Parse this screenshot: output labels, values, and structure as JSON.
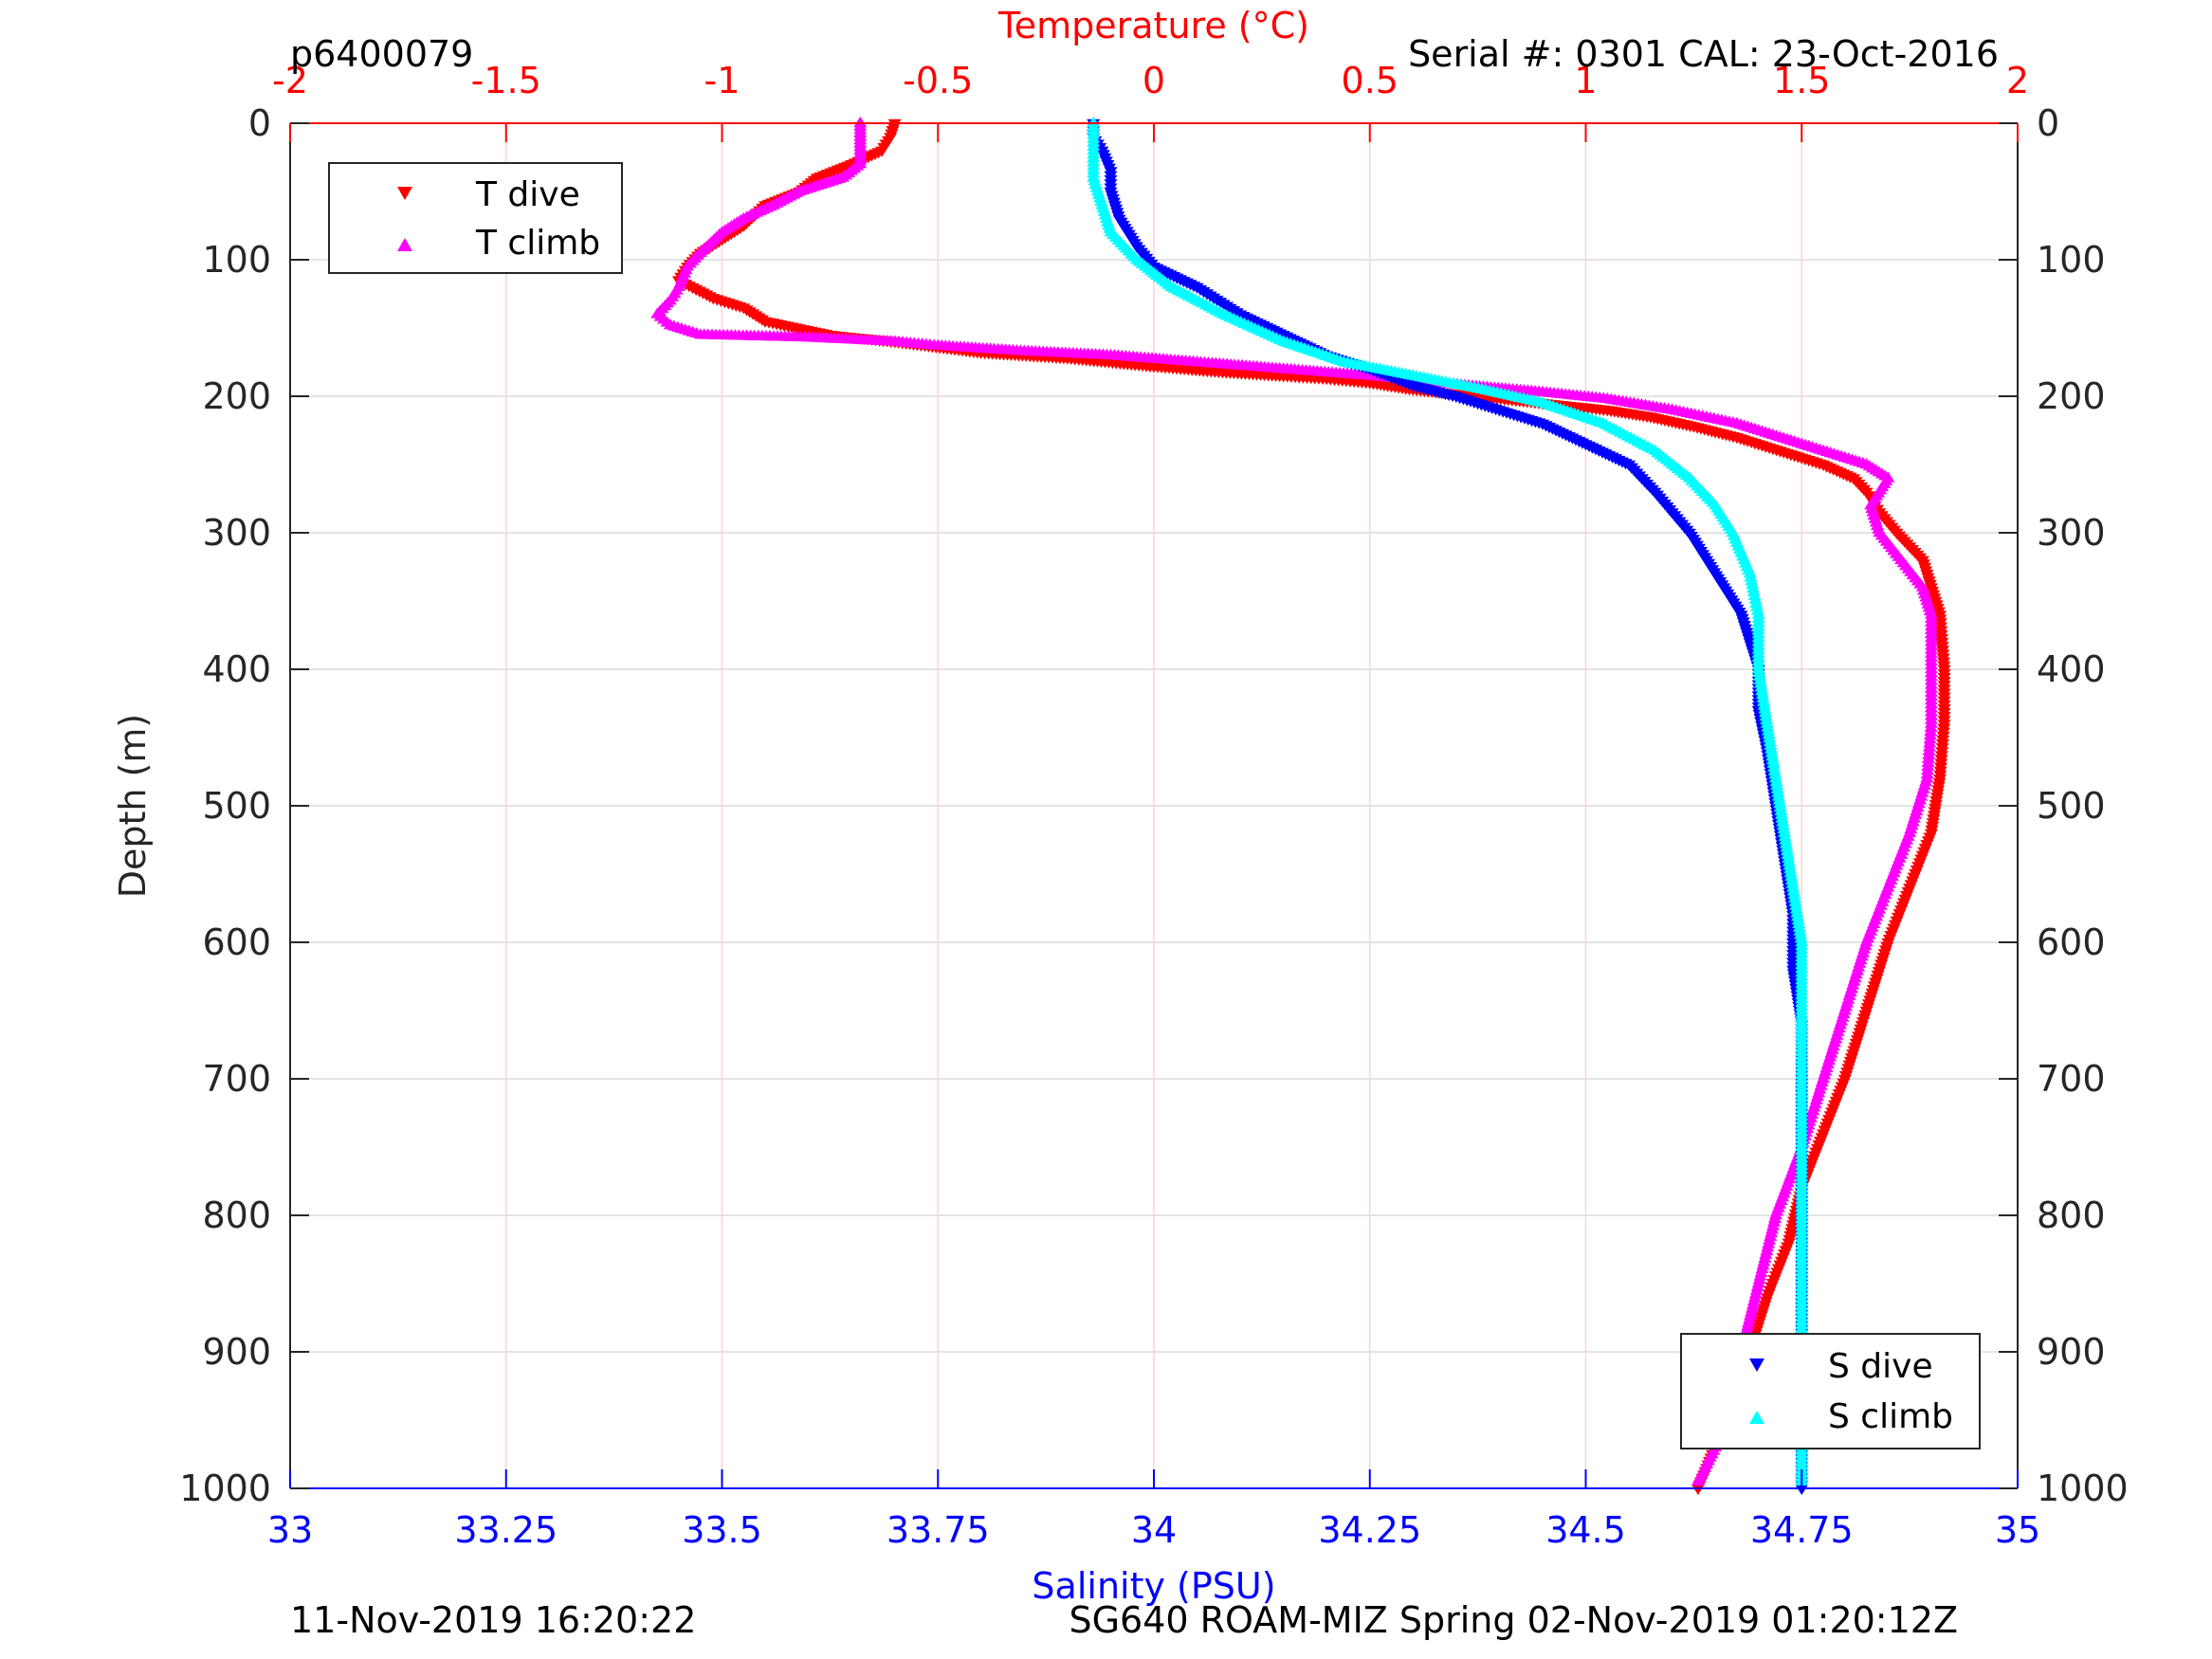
{
  "header": {
    "profile_id": "p6400079",
    "serial": "Serial #: 0301  CAL: 23-Oct-2016"
  },
  "footer": {
    "left": "11-Nov-2019 16:20:22",
    "right": "SG640 ROAM-MIZ Spring 02-Nov-2019 01:20:12Z"
  },
  "colors": {
    "t_dive": "#ff0000",
    "t_climb": "#ff00ff",
    "s_dive": "#0000ff",
    "s_climb": "#00ffff",
    "temperature_axis": "#ff0000",
    "salinity_axis": "#0000ff"
  },
  "chart_data": {
    "type": "scatter",
    "title": "",
    "ylabel": "Depth (m)",
    "top_xlabel": "Temperature (°C)",
    "bottom_xlabel": "Salinity (PSU)",
    "ylim": [
      0,
      1000
    ],
    "y_reversed": true,
    "temperature_xlim": [
      -2,
      2
    ],
    "salinity_xlim": [
      33,
      35
    ],
    "depth_ticks": [
      0,
      100,
      200,
      300,
      400,
      500,
      600,
      700,
      800,
      900,
      1000
    ],
    "temperature_ticks": [
      -2,
      -1.5,
      -1,
      -0.5,
      0,
      0.5,
      1,
      1.5,
      2
    ],
    "salinity_ticks": [
      33,
      33.25,
      33.5,
      33.75,
      34,
      34.25,
      34.5,
      34.75,
      35
    ],
    "grid": true,
    "legends": [
      {
        "placement": "top-left",
        "entries": [
          "T dive",
          "T climb"
        ]
      },
      {
        "placement": "bottom-right",
        "entries": [
          "S dive",
          "S climb"
        ]
      }
    ],
    "series": [
      {
        "name": "T dive",
        "axis": "temperature",
        "marker": "triangle-down",
        "color": "#ff0000",
        "points": [
          [
            -0.6,
            0
          ],
          [
            -0.61,
            10
          ],
          [
            -0.63,
            20
          ],
          [
            -0.7,
            30
          ],
          [
            -0.78,
            40
          ],
          [
            -0.82,
            50
          ],
          [
            -0.9,
            60
          ],
          [
            -0.95,
            75
          ],
          [
            -1.0,
            85
          ],
          [
            -1.05,
            95
          ],
          [
            -1.08,
            105
          ],
          [
            -1.1,
            115
          ],
          [
            -1.02,
            128
          ],
          [
            -0.95,
            135
          ],
          [
            -0.9,
            145
          ],
          [
            -0.75,
            155
          ],
          [
            -0.6,
            160
          ],
          [
            -0.4,
            168
          ],
          [
            -0.2,
            172
          ],
          [
            0.0,
            178
          ],
          [
            0.15,
            182
          ],
          [
            0.3,
            185
          ],
          [
            0.4,
            187
          ],
          [
            0.5,
            190
          ],
          [
            0.6,
            195
          ],
          [
            0.75,
            200
          ],
          [
            0.9,
            205
          ],
          [
            1.05,
            210
          ],
          [
            1.15,
            215
          ],
          [
            1.25,
            222
          ],
          [
            1.35,
            230
          ],
          [
            1.45,
            240
          ],
          [
            1.55,
            250
          ],
          [
            1.62,
            260
          ],
          [
            1.65,
            270
          ],
          [
            1.68,
            285
          ],
          [
            1.72,
            300
          ],
          [
            1.78,
            320
          ],
          [
            1.8,
            340
          ],
          [
            1.82,
            360
          ],
          [
            1.83,
            400
          ],
          [
            1.83,
            440
          ],
          [
            1.82,
            480
          ],
          [
            1.8,
            520
          ],
          [
            1.75,
            560
          ],
          [
            1.7,
            600
          ],
          [
            1.65,
            650
          ],
          [
            1.6,
            700
          ],
          [
            1.55,
            740
          ],
          [
            1.5,
            780
          ],
          [
            1.47,
            820
          ],
          [
            1.42,
            860
          ],
          [
            1.38,
            900
          ],
          [
            1.34,
            940
          ],
          [
            1.3,
            970
          ],
          [
            1.26,
            1000
          ]
        ]
      },
      {
        "name": "T climb",
        "axis": "temperature",
        "marker": "triangle-up",
        "color": "#ff00ff",
        "points": [
          [
            -0.68,
            0
          ],
          [
            -0.68,
            10
          ],
          [
            -0.68,
            20
          ],
          [
            -0.68,
            30
          ],
          [
            -0.72,
            40
          ],
          [
            -0.82,
            50
          ],
          [
            -0.88,
            60
          ],
          [
            -0.95,
            70
          ],
          [
            -1.0,
            80
          ],
          [
            -1.05,
            95
          ],
          [
            -1.08,
            105
          ],
          [
            -1.1,
            120
          ],
          [
            -1.12,
            130
          ],
          [
            -1.15,
            140
          ],
          [
            -1.12,
            148
          ],
          [
            -1.05,
            155
          ],
          [
            -0.8,
            157
          ],
          [
            -0.6,
            160
          ],
          [
            -0.5,
            163
          ],
          [
            -0.3,
            167
          ],
          [
            -0.1,
            170
          ],
          [
            0.1,
            175
          ],
          [
            0.3,
            180
          ],
          [
            0.5,
            185
          ],
          [
            0.72,
            192
          ],
          [
            0.9,
            197
          ],
          [
            1.05,
            202
          ],
          [
            1.2,
            210
          ],
          [
            1.35,
            220
          ],
          [
            1.45,
            230
          ],
          [
            1.55,
            240
          ],
          [
            1.65,
            250
          ],
          [
            1.7,
            260
          ],
          [
            1.66,
            280
          ],
          [
            1.68,
            300
          ],
          [
            1.73,
            320
          ],
          [
            1.78,
            340
          ],
          [
            1.8,
            360
          ],
          [
            1.8,
            400
          ],
          [
            1.8,
            440
          ],
          [
            1.79,
            480
          ],
          [
            1.75,
            520
          ],
          [
            1.7,
            560
          ],
          [
            1.65,
            600
          ],
          [
            1.6,
            650
          ],
          [
            1.55,
            700
          ],
          [
            1.5,
            750
          ],
          [
            1.44,
            800
          ],
          [
            1.4,
            850
          ],
          [
            1.36,
            900
          ],
          [
            1.34,
            940
          ],
          [
            1.3,
            970
          ],
          [
            1.26,
            995
          ]
        ]
      },
      {
        "name": "S dive",
        "axis": "salinity",
        "marker": "triangle-down",
        "color": "#0000ff",
        "points": [
          [
            33.93,
            0
          ],
          [
            33.93,
            10
          ],
          [
            33.94,
            20
          ],
          [
            33.95,
            35
          ],
          [
            33.95,
            50
          ],
          [
            33.96,
            70
          ],
          [
            33.98,
            90
          ],
          [
            34.0,
            105
          ],
          [
            34.05,
            120
          ],
          [
            34.1,
            140
          ],
          [
            34.15,
            155
          ],
          [
            34.2,
            170
          ],
          [
            34.25,
            180
          ],
          [
            34.3,
            192
          ],
          [
            34.35,
            200
          ],
          [
            34.4,
            210
          ],
          [
            34.45,
            220
          ],
          [
            34.5,
            235
          ],
          [
            34.55,
            250
          ],
          [
            34.58,
            270
          ],
          [
            34.6,
            285
          ],
          [
            34.62,
            300
          ],
          [
            34.64,
            320
          ],
          [
            34.66,
            340
          ],
          [
            34.68,
            360
          ],
          [
            34.69,
            380
          ],
          [
            34.7,
            400
          ],
          [
            34.7,
            430
          ],
          [
            34.71,
            460
          ],
          [
            34.72,
            500
          ],
          [
            34.73,
            540
          ],
          [
            34.74,
            580
          ],
          [
            34.74,
            620
          ],
          [
            34.75,
            660
          ],
          [
            34.75,
            700
          ],
          [
            34.75,
            750
          ],
          [
            34.75,
            800
          ],
          [
            34.75,
            850
          ],
          [
            34.75,
            900
          ],
          [
            34.75,
            950
          ],
          [
            34.75,
            1000
          ]
        ]
      },
      {
        "name": "S climb",
        "axis": "salinity",
        "marker": "triangle-up",
        "color": "#00ffff",
        "points": [
          [
            33.93,
            0
          ],
          [
            33.93,
            20
          ],
          [
            33.93,
            40
          ],
          [
            33.94,
            60
          ],
          [
            33.95,
            80
          ],
          [
            33.98,
            100
          ],
          [
            34.02,
            120
          ],
          [
            34.08,
            140
          ],
          [
            34.15,
            160
          ],
          [
            34.22,
            175
          ],
          [
            34.3,
            185
          ],
          [
            34.38,
            195
          ],
          [
            34.45,
            205
          ],
          [
            34.52,
            220
          ],
          [
            34.58,
            240
          ],
          [
            34.62,
            260
          ],
          [
            34.65,
            280
          ],
          [
            34.67,
            300
          ],
          [
            34.69,
            330
          ],
          [
            34.7,
            360
          ],
          [
            34.7,
            400
          ],
          [
            34.71,
            440
          ],
          [
            34.72,
            480
          ],
          [
            34.73,
            520
          ],
          [
            34.74,
            560
          ],
          [
            34.75,
            600
          ],
          [
            34.75,
            650
          ],
          [
            34.75,
            700
          ],
          [
            34.75,
            750
          ],
          [
            34.75,
            800
          ],
          [
            34.75,
            850
          ],
          [
            34.75,
            900
          ],
          [
            34.75,
            950
          ],
          [
            34.75,
            995
          ]
        ]
      }
    ]
  }
}
